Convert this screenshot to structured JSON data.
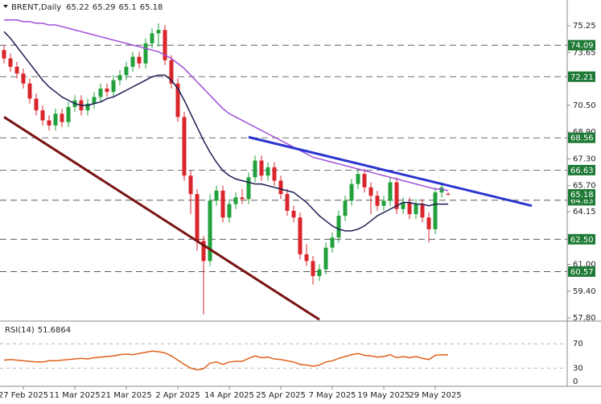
{
  "chart_data": [
    {
      "type": "candlestick",
      "title": "BRENT,Daily",
      "categories": [
        null,
        null,
        null,
        "27 Feb 2025",
        null,
        null,
        null,
        null,
        null,
        null,
        null,
        "11 Mar 2025",
        null,
        null,
        null,
        null,
        null,
        null,
        null,
        "21 Mar 2025",
        null,
        null,
        null,
        null,
        null,
        null,
        null,
        "2 Apr 2025",
        null,
        null,
        null,
        null,
        null,
        null,
        null,
        "14 Apr 2025",
        null,
        null,
        null,
        null,
        null,
        null,
        null,
        "25 Apr 2025",
        null,
        null,
        null,
        null,
        null,
        null,
        null,
        "7 May 2025",
        null,
        null,
        null,
        null,
        null,
        null,
        null,
        "19 May 2025",
        null,
        null,
        null,
        null,
        null,
        null,
        null,
        "29 May 2025",
        null,
        null
      ],
      "candles": {
        "up_color": "#22a03c",
        "down_color": "#d9262c",
        "open": [
          73.8,
          73.3,
          72.8,
          72.4,
          71.8,
          70.9,
          70.2,
          69.6,
          69.3,
          70.0,
          69.5,
          70.4,
          70.8,
          70.2,
          70.6,
          71.0,
          71.5,
          71.3,
          72.0,
          72.3,
          72.8,
          73.4,
          73.0,
          74.2,
          74.8,
          75.0,
          73.2,
          71.8,
          69.8,
          66.3,
          65.2,
          62.4,
          61.2,
          64.8,
          65.4,
          63.8,
          64.6,
          65.0,
          64.9,
          66.2,
          67.2,
          66.3,
          66.8,
          66.0,
          65.2,
          64.2,
          63.8,
          61.6,
          61.2,
          60.3,
          60.7,
          62.0,
          62.6,
          63.9,
          64.8,
          65.8,
          66.4,
          65.6,
          65.1,
          64.5,
          64.8,
          65.9,
          64.3,
          64.7,
          64.0,
          64.6,
          63.8,
          63.1,
          65.3,
          65.22
        ],
        "high": [
          74.1,
          73.6,
          73.1,
          72.7,
          72.1,
          71.2,
          70.5,
          69.9,
          70.3,
          70.3,
          70.7,
          71.1,
          71.1,
          70.9,
          71.3,
          71.8,
          71.8,
          72.3,
          72.6,
          73.1,
          73.7,
          73.7,
          74.5,
          75.1,
          75.4,
          75.3,
          73.5,
          72.1,
          70.1,
          66.6,
          65.5,
          62.7,
          65.2,
          65.7,
          65.7,
          64.9,
          65.3,
          65.5,
          66.5,
          67.5,
          67.5,
          67.1,
          67.1,
          66.3,
          65.5,
          64.5,
          64.1,
          62.2,
          61.5,
          61.0,
          62.3,
          62.9,
          64.2,
          65.1,
          66.1,
          66.7,
          66.7,
          65.9,
          65.4,
          65.1,
          66.2,
          66.2,
          65.0,
          65.0,
          64.9,
          64.9,
          64.1,
          65.6,
          65.9,
          65.29
        ],
        "low": [
          73.0,
          72.5,
          72.1,
          71.5,
          70.6,
          69.9,
          69.3,
          69.0,
          69.0,
          69.2,
          69.2,
          70.1,
          69.9,
          69.9,
          70.3,
          70.7,
          71.0,
          71.0,
          71.7,
          72.0,
          72.5,
          72.7,
          72.7,
          73.9,
          74.0,
          72.9,
          71.5,
          69.5,
          66.0,
          64.0,
          61.8,
          58.0,
          60.9,
          64.5,
          63.5,
          63.5,
          64.3,
          64.6,
          64.6,
          65.9,
          66.0,
          66.0,
          65.7,
          64.9,
          63.9,
          63.5,
          61.3,
          60.9,
          59.8,
          60.0,
          60.4,
          61.7,
          62.3,
          63.6,
          64.5,
          65.5,
          65.3,
          64.0,
          64.2,
          64.2,
          64.5,
          64.0,
          64.0,
          63.7,
          63.7,
          63.5,
          62.3,
          62.8,
          65.0,
          65.1
        ],
        "close": [
          73.3,
          72.8,
          72.4,
          71.8,
          70.9,
          70.2,
          69.6,
          69.3,
          70.0,
          69.5,
          70.4,
          70.8,
          70.2,
          70.6,
          71.0,
          71.5,
          71.3,
          72.0,
          72.3,
          72.8,
          73.4,
          73.0,
          74.2,
          74.8,
          75.0,
          73.2,
          71.8,
          69.8,
          66.3,
          65.2,
          62.4,
          61.2,
          64.8,
          65.4,
          63.8,
          64.6,
          65.0,
          64.9,
          66.2,
          67.2,
          66.3,
          66.8,
          66.0,
          65.2,
          64.2,
          63.8,
          61.6,
          61.2,
          60.3,
          60.7,
          62.0,
          62.6,
          63.9,
          64.8,
          65.8,
          66.4,
          65.6,
          65.1,
          64.5,
          64.8,
          65.9,
          64.3,
          64.7,
          64.0,
          64.6,
          63.8,
          63.1,
          65.3,
          65.6,
          65.18
        ]
      },
      "lines": [
        {
          "color": "#1b1e52",
          "values": [
            74.9,
            74.5,
            74.0,
            73.5,
            73.0,
            72.5,
            72.0,
            71.6,
            71.3,
            71.0,
            70.8,
            70.6,
            70.5,
            70.5,
            70.6,
            70.7,
            70.9,
            71.0,
            71.2,
            71.4,
            71.6,
            71.8,
            72.0,
            72.2,
            72.3,
            72.3,
            72.0,
            71.5,
            70.8,
            70.0,
            69.2,
            68.4,
            67.7,
            67.1,
            66.6,
            66.3,
            66.1,
            66.0,
            65.9,
            65.8,
            65.8,
            65.7,
            65.6,
            65.5,
            65.4,
            65.3,
            65.0,
            64.7,
            64.3,
            63.9,
            63.6,
            63.3,
            63.1,
            63.0,
            63.0,
            63.1,
            63.3,
            63.6,
            63.9,
            64.1,
            64.3,
            64.5,
            64.7,
            64.7,
            64.6,
            64.6,
            64.5,
            64.6,
            64.6,
            64.6
          ]
        },
        {
          "color": "#a050d8",
          "values": [
            75.6,
            75.6,
            75.6,
            75.5,
            75.5,
            75.4,
            75.4,
            75.3,
            75.3,
            75.2,
            75.1,
            75.0,
            74.9,
            74.8,
            74.7,
            74.6,
            74.5,
            74.4,
            74.3,
            74.2,
            74.1,
            74.0,
            73.9,
            73.8,
            73.7,
            73.5,
            73.3,
            73.0,
            72.7,
            72.3,
            71.9,
            71.5,
            71.1,
            70.7,
            70.3,
            70.0,
            69.8,
            69.6,
            69.4,
            69.2,
            69.0,
            68.8,
            68.6,
            68.4,
            68.2,
            68.0,
            67.8,
            67.6,
            67.4,
            67.3,
            67.2,
            67.1,
            67.0,
            66.9,
            66.8,
            66.7,
            66.6,
            66.5,
            66.4,
            66.3,
            66.2,
            66.1,
            66.0,
            65.9,
            65.8,
            65.7,
            65.6,
            65.5,
            65.5,
            65.4
          ]
        }
      ],
      "trendlines": [
        {
          "color": "#2a35cf",
          "x": [
            38,
            82
          ],
          "values": [
            68.6,
            64.5
          ]
        },
        {
          "color": "#7a1414",
          "x": [
            0,
            49
          ],
          "values": [
            69.8,
            57.7
          ]
        }
      ],
      "levels": [
        74.09,
        72.21,
        68.56,
        66.63,
        64.83,
        {
          "value": 62.5,
          "label": "62.50"
        },
        60.57
      ],
      "ylim": [
        57.66,
        76.79
      ],
      "yticks": [
        75.25,
        73.65,
        {
          "value": 70.5,
          "label": "70.50"
        },
        {
          "value": 68.9,
          "label": "68.90"
        },
        {
          "value": 67.3,
          "label": "67.30"
        },
        {
          "value": 65.7,
          "label": "65.70"
        },
        64.15,
        {
          "value": 61,
          "label": "61.00"
        },
        {
          "value": 59.4,
          "label": "59.40"
        },
        {
          "value": 57.8,
          "label": "57.80"
        }
      ]
    },
    {
      "type": "line",
      "title": "RSI(14)",
      "color": "#e0601a",
      "values": [
        43,
        44,
        43,
        42,
        41,
        40,
        40,
        42,
        42,
        43,
        44,
        45,
        46,
        45,
        47,
        48,
        49,
        50,
        52,
        53,
        52,
        54,
        56,
        58,
        57,
        55,
        50,
        43,
        36,
        30,
        27,
        29,
        38,
        40,
        36,
        40,
        41,
        41,
        46,
        50,
        47,
        48,
        45,
        44,
        42,
        40,
        36,
        35,
        33,
        35,
        40,
        42,
        46,
        49,
        52,
        54,
        51,
        50,
        48,
        49,
        52,
        47,
        49,
        47,
        49,
        46,
        44,
        51,
        52,
        51.6864
      ],
      "ylim": [
        0,
        106
      ],
      "yticks": [
        70,
        30,
        0
      ]
    }
  ]
}
